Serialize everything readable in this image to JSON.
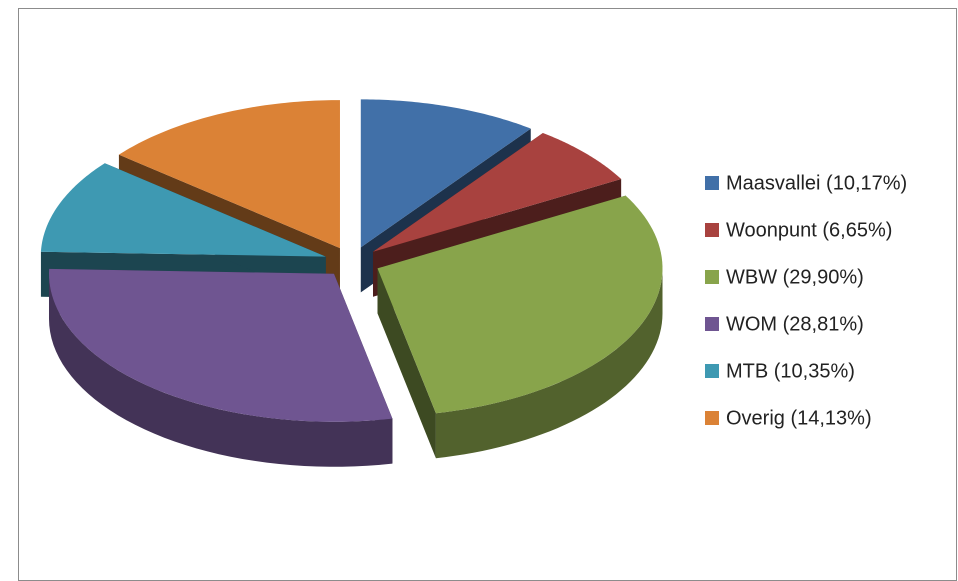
{
  "chart_data": {
    "type": "pie3d",
    "categories": [
      "Maasvallei (10,17%)",
      "Woonpunt (6,65%)",
      "WBW (29,90%)",
      "WOM (28,81%)",
      "MTB (10,35%)",
      "Overig (14,13%)"
    ],
    "values": [
      10.17,
      6.65,
      29.9,
      28.81,
      10.35,
      14.13
    ],
    "colors": [
      "#4170a8",
      "#a8423f",
      "#88a44b",
      "#6f5591",
      "#3e99b2",
      "#db8236"
    ],
    "legend": "right"
  }
}
